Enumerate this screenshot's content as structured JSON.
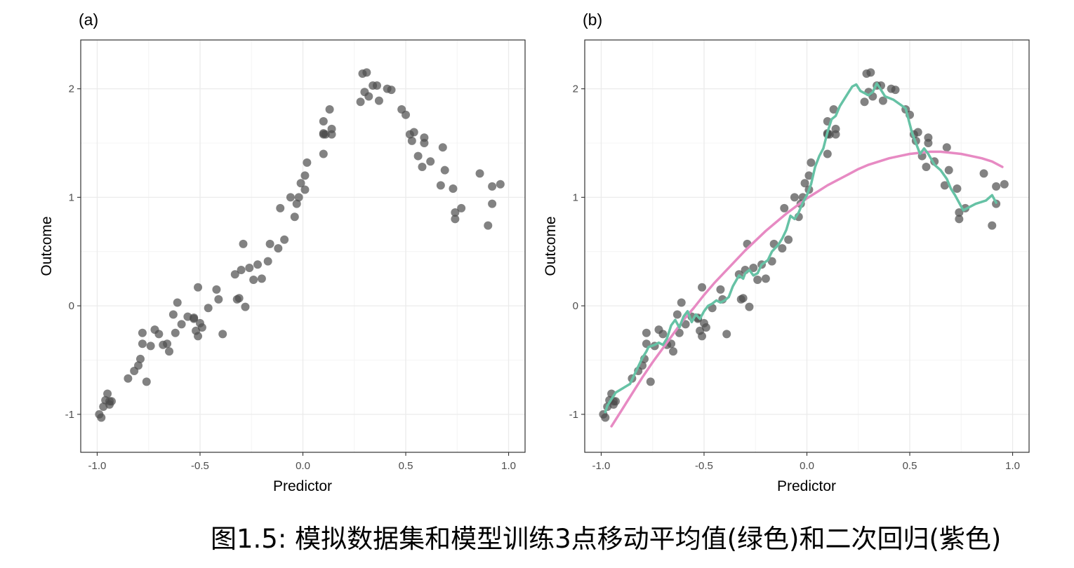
{
  "caption": "图1.5: 模拟数据集和模型训练3点移动平均值(绿色)和二次回归(紫色)",
  "colors": {
    "points": "#4d4d4d",
    "moving_average": "#66c2a5",
    "quadratic": "#e78ac3",
    "grid": "#ebebeb",
    "panel_border": "#333333"
  },
  "chart_data": [
    {
      "type": "scatter",
      "panel_label": "(a)",
      "xlabel": "Predictor",
      "ylabel": "Outcome",
      "xlim": [
        -1.08,
        1.08
      ],
      "ylim": [
        -1.35,
        2.45
      ],
      "xticks": [
        -1.0,
        -0.5,
        0.0,
        0.5,
        1.0
      ],
      "xtick_labels": [
        "-1.0",
        "-0.5",
        "0.0",
        "0.5",
        "1.0"
      ],
      "yticks": [
        -1,
        0,
        1,
        2
      ],
      "ytick_labels": [
        "-1",
        "0",
        "1",
        "2"
      ],
      "grid": true,
      "series": [
        {
          "x": [
            -0.99,
            -0.98,
            -0.97,
            -0.96,
            -0.95,
            -0.94,
            -0.94,
            -0.93,
            -0.85,
            -0.82,
            -0.8,
            -0.79,
            -0.78,
            -0.78,
            -0.76,
            -0.74,
            -0.72,
            -0.7,
            -0.68,
            -0.66,
            -0.65,
            -0.63,
            -0.62,
            -0.61,
            -0.59,
            -0.56,
            -0.53,
            -0.53,
            -0.52,
            -0.51,
            -0.51,
            -0.5,
            -0.49,
            -0.46,
            -0.42,
            -0.41,
            -0.39,
            -0.33,
            -0.32,
            -0.31,
            -0.3,
            -0.29,
            -0.28,
            -0.26,
            -0.24,
            -0.22,
            -0.2,
            -0.17,
            -0.16,
            -0.12,
            -0.11,
            -0.09,
            -0.06,
            -0.04,
            -0.03,
            -0.02,
            -0.01,
            0.01,
            0.01,
            0.02,
            0.1,
            0.1,
            0.1,
            0.1,
            0.11,
            0.13,
            0.14,
            0.14,
            0.28,
            0.29,
            0.3,
            0.31,
            0.32,
            0.34,
            0.36,
            0.37,
            0.41,
            0.43,
            0.48,
            0.5,
            0.52,
            0.53,
            0.54,
            0.56,
            0.58,
            0.59,
            0.59,
            0.62,
            0.67,
            0.68,
            0.69,
            0.73,
            0.74,
            0.74,
            0.77,
            0.86,
            0.9,
            0.92,
            0.92,
            0.96
          ],
          "y": [
            -1.0,
            -1.03,
            -0.93,
            -0.87,
            -0.81,
            -0.88,
            -0.91,
            -0.88,
            -0.67,
            -0.6,
            -0.55,
            -0.49,
            -0.25,
            -0.35,
            -0.7,
            -0.37,
            -0.22,
            -0.26,
            -0.36,
            -0.35,
            -0.42,
            -0.08,
            -0.25,
            0.03,
            -0.17,
            -0.1,
            -0.11,
            -0.12,
            -0.23,
            -0.28,
            0.17,
            -0.16,
            -0.2,
            -0.02,
            0.15,
            0.06,
            -0.26,
            0.29,
            0.06,
            0.07,
            0.33,
            0.57,
            -0.01,
            0.35,
            0.24,
            0.38,
            0.25,
            0.41,
            0.57,
            0.53,
            0.9,
            0.61,
            1.0,
            0.82,
            0.94,
            1.0,
            1.13,
            1.07,
            1.2,
            1.32,
            1.4,
            1.58,
            1.59,
            1.7,
            1.58,
            1.81,
            1.63,
            1.58,
            1.88,
            2.14,
            1.97,
            2.15,
            1.93,
            2.03,
            2.03,
            1.89,
            2.0,
            1.99,
            1.81,
            1.76,
            1.58,
            1.52,
            1.6,
            1.38,
            1.28,
            1.55,
            1.5,
            1.33,
            1.11,
            1.46,
            1.25,
            1.08,
            0.86,
            0.8,
            0.9,
            1.22,
            0.74,
            1.1,
            0.94,
            1.12
          ]
        }
      ]
    },
    {
      "type": "scatter",
      "panel_label": "(b)",
      "xlabel": "Predictor",
      "ylabel": "Outcome",
      "xlim": [
        -1.08,
        1.08
      ],
      "ylim": [
        -1.35,
        2.45
      ],
      "xticks": [
        -1.0,
        -0.5,
        0.0,
        0.5,
        1.0
      ],
      "xtick_labels": [
        "-1.0",
        "-0.5",
        "0.0",
        "0.5",
        "1.0"
      ],
      "yticks": [
        -1,
        0,
        1,
        2
      ],
      "ytick_labels": [
        "-1",
        "0",
        "1",
        "2"
      ],
      "grid": true,
      "series": [
        {
          "type": "scatter",
          "reuse_points_from_panel": 0
        },
        {
          "type": "line",
          "color": "#66c2a5",
          "x": [
            -0.98,
            -0.97,
            -0.95,
            -0.93,
            -0.86,
            -0.83,
            -0.8,
            -0.78,
            -0.77,
            -0.74,
            -0.72,
            -0.7,
            -0.68,
            -0.66,
            -0.64,
            -0.62,
            -0.6,
            -0.58,
            -0.56,
            -0.54,
            -0.52,
            -0.5,
            -0.48,
            -0.46,
            -0.44,
            -0.42,
            -0.4,
            -0.38,
            -0.36,
            -0.33,
            -0.31,
            -0.3,
            -0.28,
            -0.26,
            -0.24,
            -0.22,
            -0.19,
            -0.17,
            -0.14,
            -0.12,
            -0.1,
            -0.08,
            -0.06,
            -0.04,
            -0.02,
            0.0,
            0.02,
            0.04,
            0.06,
            0.08,
            0.1,
            0.12,
            0.14,
            0.16,
            0.18,
            0.2,
            0.22,
            0.24,
            0.26,
            0.28,
            0.3,
            0.32,
            0.34,
            0.36,
            0.38,
            0.42,
            0.48,
            0.51,
            0.53,
            0.55,
            0.57,
            0.59,
            0.62,
            0.65,
            0.68,
            0.7,
            0.72,
            0.74,
            0.76,
            0.78,
            0.82,
            0.87,
            0.9,
            0.92
          ],
          "y": [
            -0.98,
            -0.92,
            -0.86,
            -0.8,
            -0.72,
            -0.6,
            -0.48,
            -0.42,
            -0.38,
            -0.36,
            -0.34,
            -0.36,
            -0.3,
            -0.18,
            -0.13,
            -0.2,
            -0.1,
            -0.05,
            -0.15,
            -0.08,
            -0.12,
            -0.05,
            0.0,
            0.02,
            0.05,
            0.03,
            0.05,
            0.08,
            0.18,
            0.28,
            0.25,
            0.3,
            0.33,
            0.28,
            0.3,
            0.38,
            0.42,
            0.5,
            0.56,
            0.62,
            0.7,
            0.83,
            0.8,
            0.86,
            0.95,
            1.02,
            1.12,
            1.28,
            1.38,
            1.45,
            1.6,
            1.72,
            1.75,
            1.84,
            1.9,
            1.96,
            2.02,
            2.04,
            1.98,
            1.96,
            1.94,
            1.97,
            2.05,
            1.99,
            1.93,
            1.9,
            1.82,
            1.6,
            1.5,
            1.4,
            1.45,
            1.4,
            1.3,
            1.25,
            1.17,
            1.08,
            1.02,
            0.95,
            0.88,
            0.9,
            0.94,
            0.97,
            1.02,
            0.95
          ]
        },
        {
          "type": "line",
          "color": "#e78ac3",
          "x": [
            -0.95,
            -0.9,
            -0.85,
            -0.8,
            -0.75,
            -0.7,
            -0.65,
            -0.6,
            -0.55,
            -0.5,
            -0.45,
            -0.4,
            -0.35,
            -0.3,
            -0.25,
            -0.2,
            -0.15,
            -0.1,
            -0.05,
            0.0,
            0.05,
            0.1,
            0.15,
            0.2,
            0.25,
            0.3,
            0.35,
            0.4,
            0.45,
            0.5,
            0.55,
            0.6,
            0.65,
            0.7,
            0.75,
            0.8,
            0.85,
            0.9,
            0.95
          ],
          "y": [
            -1.11,
            -0.96,
            -0.81,
            -0.66,
            -0.52,
            -0.39,
            -0.26,
            -0.13,
            -0.02,
            0.1,
            0.21,
            0.31,
            0.41,
            0.51,
            0.6,
            0.69,
            0.77,
            0.85,
            0.92,
            0.99,
            1.05,
            1.11,
            1.16,
            1.21,
            1.26,
            1.3,
            1.33,
            1.36,
            1.38,
            1.4,
            1.41,
            1.42,
            1.42,
            1.41,
            1.4,
            1.38,
            1.36,
            1.33,
            1.28
          ]
        }
      ]
    }
  ]
}
